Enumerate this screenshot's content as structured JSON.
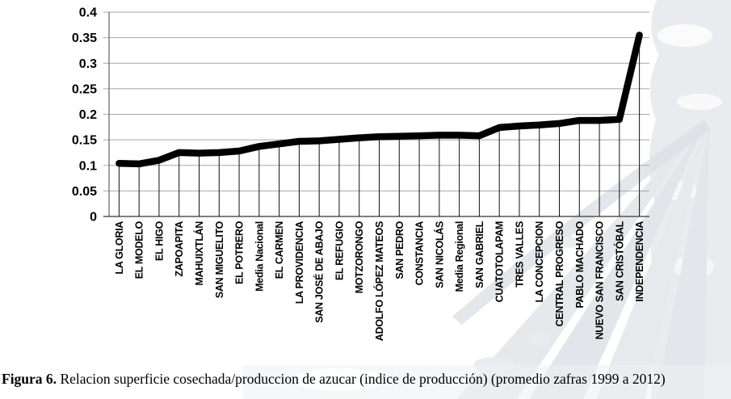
{
  "figure": {
    "caption_label": "Figura 6.",
    "caption_text": " Relacion superficie cosechada/produccion de azucar (indice de producción) (promedio zafras 1999 a 2012)"
  },
  "chart_data": {
    "type": "line",
    "title": "",
    "xlabel": "",
    "ylabel": "",
    "categories": [
      "LA GLORIA",
      "EL MODELO",
      "EL HIGO",
      "ZAPOAPITA",
      "MAHUIXTLÁN",
      "SAN MIGUELITO",
      "EL POTRERO",
      "Media Nacional",
      "EL CARMEN",
      "LA PROVIDENCIA",
      "SAN JOSÉ DE ABAJO",
      "EL REFUGIO",
      "MOTZORONGO",
      "ADOLFO LÓPEZ MATEOS",
      "SAN PEDRO",
      "CONSTANCIA",
      "SAN NICOLÁS",
      "Media Regional",
      "SAN GABRIEL",
      "CUATOTOLAPAM",
      "TRES VALLES",
      "LA CONCEPCION",
      "CENTRAL PROGRESO",
      "PABLO MACHADO",
      "NUEVO SAN FRANCISCO",
      "SAN CRISTÓBAL",
      "INDEPENDENCIA"
    ],
    "values": [
      0.104,
      0.103,
      0.11,
      0.125,
      0.124,
      0.125,
      0.128,
      0.137,
      0.142,
      0.147,
      0.148,
      0.151,
      0.154,
      0.156,
      0.157,
      0.158,
      0.159,
      0.159,
      0.158,
      0.174,
      0.177,
      0.179,
      0.182,
      0.188,
      0.188,
      0.19,
      0.355
    ],
    "ylim": [
      0,
      0.4
    ],
    "ytick_labels": [
      "0",
      "0.05",
      "0.1",
      "0.15",
      "0.2",
      "0.25",
      "0.3",
      "0.35",
      "0.4"
    ],
    "ytick_values": [
      0,
      0.05,
      0.1,
      0.15,
      0.2,
      0.25,
      0.3,
      0.35,
      0.4
    ],
    "grid": "horizontal gridlines at every 0.05; vertical drop lines from each data point to baseline",
    "legend_position": "none",
    "series_color": "#000000",
    "gridline_color": "#a6a6a6",
    "axis_color": "#6e6e6e",
    "droplines_color": "#111111",
    "line_width": 8.5
  }
}
